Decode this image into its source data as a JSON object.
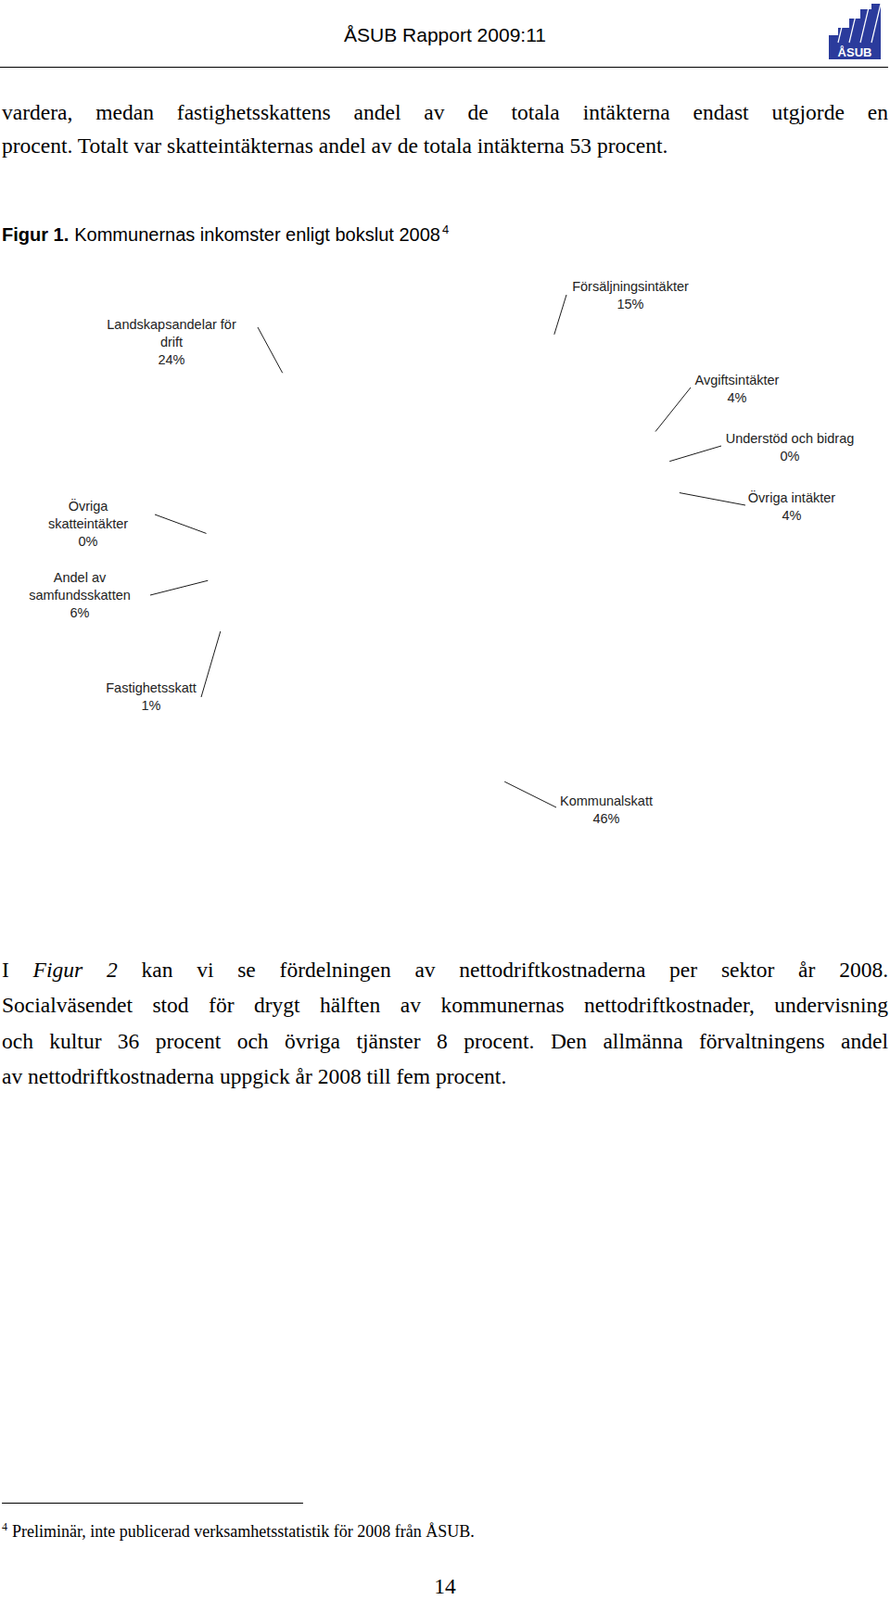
{
  "header": {
    "title": "ÅSUB Rapport 2009:11",
    "logo": "ÅSUB"
  },
  "paragraph_1": {
    "lines": [
      "vardera, medan fastighetsskattens andel av de totala intäkterna endast utgjorde en",
      "procent. Totalt var skatteintäkternas andel av de totala intäkterna 53 procent."
    ]
  },
  "figure": {
    "label": "Figur 1.",
    "caption": "Kommunernas inkomster enligt bokslut 2008",
    "note_ref": "4"
  },
  "chart_data": {
    "type": "pie",
    "categories": [
      "Försäljningsintäkter",
      "Avgiftsintäkter",
      "Understöd och bidrag",
      "Övriga intäkter",
      "Kommunalskatt",
      "Fastighetsskatt",
      "Andel av samfundsskatten",
      "Övriga skatteintäkter",
      "Landskapsandelar för drift"
    ],
    "values": [
      15,
      4,
      0.4,
      4,
      46,
      1,
      6,
      0.3,
      24
    ],
    "value_labels": [
      "15%",
      "4%",
      "0%",
      "4%",
      "46%",
      "1%",
      "6%",
      "0%",
      "24%"
    ],
    "colors": [
      "#4672a6",
      "#a8423f",
      "#ffff00",
      "#7d5d97",
      "#4398b0",
      "#000000",
      "#95a9d2",
      "#eef2f8",
      "#b8cd97"
    ],
    "data_labels": true
  },
  "paragraph_2": {
    "lines": [
      {
        "parts": [
          "I ",
          "Figur 2",
          " kan vi se fördelningen av nettodriftkostnaderna per sektor år 2008."
        ]
      },
      "Socialväsendet stod för drygt hälften av kommunernas nettodriftkostnader, undervisning",
      "och kultur 36 procent och övriga tjänster 8 procent. Den allmänna förvaltningens andel",
      "av nettodriftkostnaderna uppgick år 2008 till fem procent."
    ]
  },
  "footnote": {
    "marker": "4",
    "text": "Preliminär, inte publicerad verksamhetsstatistik för 2008 från ÅSUB."
  },
  "page_number": "14"
}
